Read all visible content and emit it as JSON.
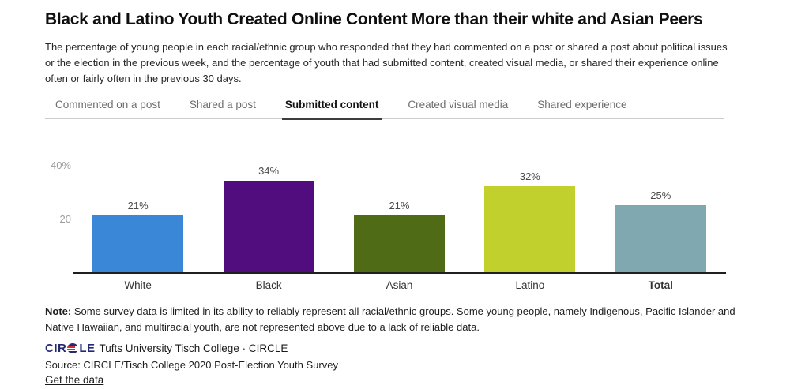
{
  "header": {
    "title": "Black and Latino Youth Created Online Content More than their white and Asian Peers",
    "description": "The percentage of young people in each racial/ethnic group who responded that they had commented on a post or shared a post about political issues or the election in the previous week, and the percentage of youth that had submitted content, created visual media, or shared their experience online often or fairly often in the previous 30 days."
  },
  "tabs": [
    {
      "label": "Commented on a post",
      "active": false
    },
    {
      "label": "Shared a post",
      "active": false
    },
    {
      "label": "Submitted content",
      "active": true
    },
    {
      "label": "Created visual media",
      "active": false
    },
    {
      "label": "Shared experience",
      "active": false
    }
  ],
  "chart_data": {
    "type": "bar",
    "categories": [
      "White",
      "Black",
      "Asian",
      "Latino",
      "Total"
    ],
    "values": [
      21,
      34,
      21,
      32,
      25
    ],
    "value_labels": [
      "21%",
      "34%",
      "21%",
      "32%",
      "25%"
    ],
    "bar_colors": [
      "#3a87d8",
      "#510c7e",
      "#4f6b16",
      "#c1d02d",
      "#80a8b0"
    ],
    "y_ticks": [
      {
        "label": "40%",
        "value": 40
      },
      {
        "label": "20",
        "value": 20
      }
    ],
    "ylim": [
      0,
      40
    ],
    "grid": false,
    "title": "",
    "xlabel": "",
    "ylabel": "",
    "bold_category": "Total"
  },
  "note": {
    "label": "Note:",
    "text": " Some survey data is limited in its ability to reliably represent all racial/ethnic groups. Some young people, namely Indigenous, Pacific Islander and Native Hawaiian, and multiracial youth, are not represented above due to a lack of reliable data."
  },
  "footer": {
    "logo_text_left": "CIR",
    "logo_text_right": "LE",
    "attribution_link": "Tufts University Tisch College · CIRCLE",
    "source": "Source: CIRCLE/Tisch College 2020 Post-Election Youth Survey",
    "data_link": "Get the data"
  },
  "colors": {
    "baseline": "#1f1f1f",
    "active_tab_underline": "#3d3d3d",
    "logo_navy": "#232a70",
    "logo_red": "#c4303c"
  }
}
